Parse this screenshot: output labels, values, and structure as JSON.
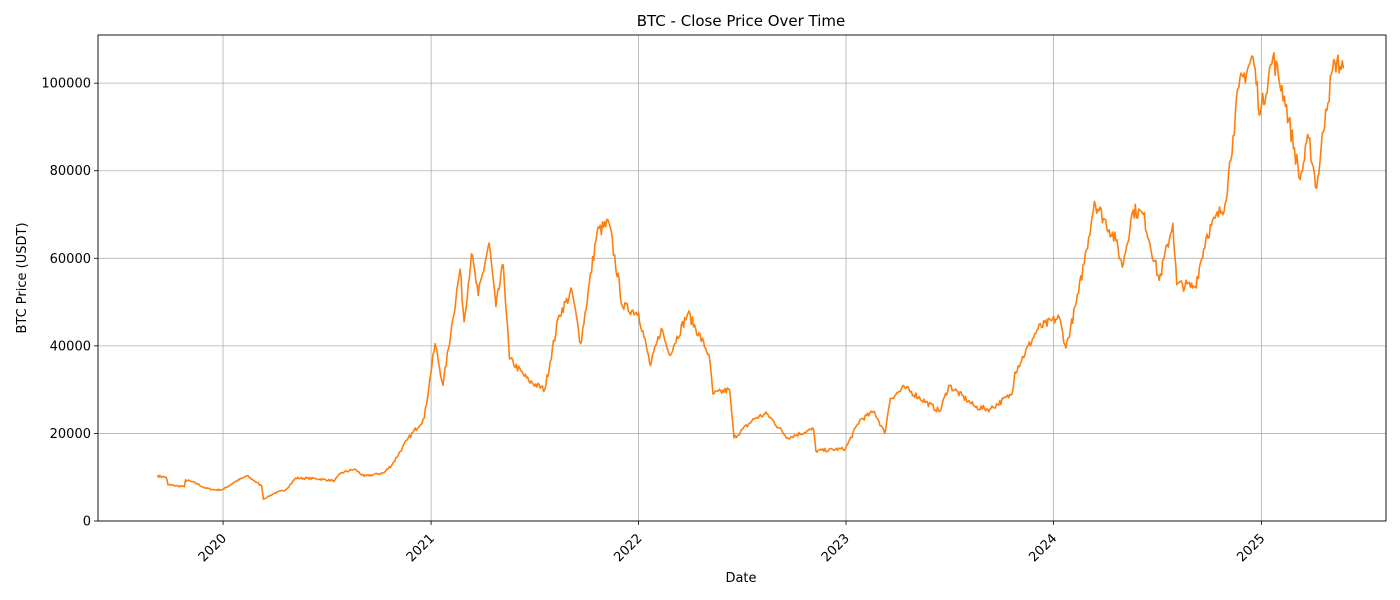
{
  "chart_data": {
    "type": "line",
    "title": "BTC - Close Price Over Time",
    "xlabel": "Date",
    "ylabel": "BTC Price (USDT)",
    "x_axis_type": "date",
    "xlim": [
      "2019-05-26",
      "2025-08-08"
    ],
    "ylim": [
      0,
      111000
    ],
    "x_ticks": [
      {
        "date": "2020-01-01",
        "label": "2020"
      },
      {
        "date": "2021-01-01",
        "label": "2021"
      },
      {
        "date": "2022-01-01",
        "label": "2022"
      },
      {
        "date": "2023-01-01",
        "label": "2023"
      },
      {
        "date": "2024-01-01",
        "label": "2024"
      },
      {
        "date": "2025-01-01",
        "label": "2025"
      }
    ],
    "y_ticks": [
      0,
      20000,
      40000,
      60000,
      80000,
      100000
    ],
    "grid": true,
    "line_color": "#ff7f0e",
    "series": [
      {
        "points": [
          [
            "2019-09-08",
            10300
          ],
          [
            "2019-09-23",
            10000
          ],
          [
            "2019-09-26",
            8300
          ],
          [
            "2019-10-25",
            7800
          ],
          [
            "2019-10-27",
            9400
          ],
          [
            "2019-11-15",
            8600
          ],
          [
            "2019-12-01",
            7500
          ],
          [
            "2019-12-18",
            7100
          ],
          [
            "2020-01-01",
            7200
          ],
          [
            "2020-01-20",
            8800
          ],
          [
            "2020-02-12",
            10300
          ],
          [
            "2020-02-25",
            9200
          ],
          [
            "2020-03-09",
            8000
          ],
          [
            "2020-03-12",
            5000
          ],
          [
            "2020-04-01",
            6400
          ],
          [
            "2020-04-20",
            7100
          ],
          [
            "2020-05-08",
            9800
          ],
          [
            "2020-06-10",
            9700
          ],
          [
            "2020-07-15",
            9200
          ],
          [
            "2020-07-27",
            11000
          ],
          [
            "2020-08-20",
            11800
          ],
          [
            "2020-09-05",
            10200
          ],
          [
            "2020-10-10",
            11000
          ],
          [
            "2020-10-25",
            13000
          ],
          [
            "2020-11-20",
            18500
          ],
          [
            "2020-12-20",
            23500
          ],
          [
            "2021-01-08",
            40500
          ],
          [
            "2021-01-22",
            31000
          ],
          [
            "2021-02-08",
            46000
          ],
          [
            "2021-02-21",
            57500
          ],
          [
            "2021-02-28",
            45500
          ],
          [
            "2021-03-13",
            61000
          ],
          [
            "2021-03-25",
            51500
          ],
          [
            "2021-04-13",
            63500
          ],
          [
            "2021-04-25",
            49000
          ],
          [
            "2021-05-08",
            58500
          ],
          [
            "2021-05-19",
            37000
          ],
          [
            "2021-06-22",
            32000
          ],
          [
            "2021-07-20",
            30000
          ],
          [
            "2021-08-14",
            47000
          ],
          [
            "2021-09-06",
            52500
          ],
          [
            "2021-09-21",
            40500
          ],
          [
            "2021-10-20",
            66000
          ],
          [
            "2021-11-10",
            68000
          ],
          [
            "2021-12-04",
            49000
          ],
          [
            "2022-01-01",
            47500
          ],
          [
            "2022-01-22",
            35500
          ],
          [
            "2022-02-10",
            44000
          ],
          [
            "2022-02-24",
            38000
          ],
          [
            "2022-03-29",
            47500
          ],
          [
            "2022-05-05",
            38000
          ],
          [
            "2022-05-12",
            29000
          ],
          [
            "2022-06-10",
            30000
          ],
          [
            "2022-06-18",
            19000
          ],
          [
            "2022-07-25",
            23500
          ],
          [
            "2022-08-15",
            24500
          ],
          [
            "2022-09-20",
            19000
          ],
          [
            "2022-11-05",
            21000
          ],
          [
            "2022-11-09",
            16000
          ],
          [
            "2022-12-31",
            16500
          ],
          [
            "2023-01-25",
            23000
          ],
          [
            "2023-02-20",
            25000
          ],
          [
            "2023-03-10",
            20000
          ],
          [
            "2023-03-20",
            28000
          ],
          [
            "2023-04-14",
            30500
          ],
          [
            "2023-06-15",
            25000
          ],
          [
            "2023-07-01",
            31000
          ],
          [
            "2023-08-17",
            26000
          ],
          [
            "2023-09-11",
            25500
          ],
          [
            "2023-10-20",
            29000
          ],
          [
            "2023-10-25",
            34000
          ],
          [
            "2023-12-05",
            44000
          ],
          [
            "2024-01-11",
            46500
          ],
          [
            "2024-01-23",
            39500
          ],
          [
            "2024-02-14",
            52000
          ],
          [
            "2024-02-28",
            62000
          ],
          [
            "2024-03-13",
            73000
          ],
          [
            "2024-04-20",
            64000
          ],
          [
            "2024-05-01",
            58000
          ],
          [
            "2024-05-20",
            71000
          ],
          [
            "2024-06-07",
            70000
          ],
          [
            "2024-07-05",
            55000
          ],
          [
            "2024-07-29",
            68000
          ],
          [
            "2024-08-05",
            54000
          ],
          [
            "2024-09-06",
            53500
          ],
          [
            "2024-09-27",
            65500
          ],
          [
            "2024-10-29",
            72500
          ],
          [
            "2024-11-12",
            88000
          ],
          [
            "2024-11-22",
            99000
          ],
          [
            "2024-12-17",
            106000
          ],
          [
            "2024-12-30",
            93000
          ],
          [
            "2025-01-21",
            106000
          ],
          [
            "2025-02-10",
            97000
          ],
          [
            "2025-03-10",
            78000
          ],
          [
            "2025-03-25",
            87500
          ],
          [
            "2025-04-08",
            76000
          ],
          [
            "2025-04-24",
            94000
          ],
          [
            "2025-05-10",
            105000
          ],
          [
            "2025-05-25",
            103500
          ]
        ]
      }
    ]
  }
}
